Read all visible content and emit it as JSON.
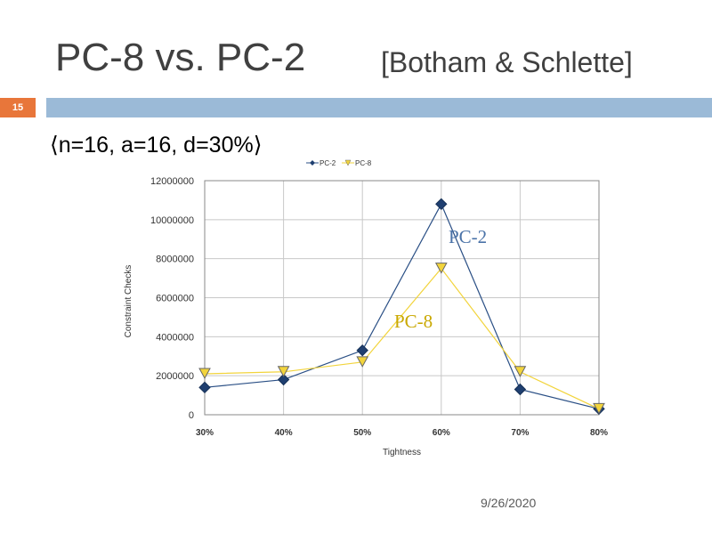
{
  "slide": {
    "title": "PC-8 vs. PC-2",
    "title_right": "[Botham & Schlette]",
    "slide_number": "15",
    "subtitle": "⟨n=16, a=16, d=30%⟩",
    "date": "9/26/2020",
    "accent_color": "#e8763a",
    "bar_color": "#9bbad7"
  },
  "chart_data": {
    "type": "line",
    "x": [
      "30%",
      "40%",
      "50%",
      "60%",
      "70%",
      "80%"
    ],
    "xlabel": "Tightness",
    "ylabel": "Constraint Checks",
    "ylim": [
      0,
      12000000
    ],
    "yticks": [
      "0",
      "2000000",
      "4000000",
      "6000000",
      "8000000",
      "10000000",
      "12000000"
    ],
    "grid": true,
    "legend": "top",
    "series": [
      {
        "name": "PC-2",
        "color": "#2a4f85",
        "marker": "diamond",
        "values": [
          1400000,
          1800000,
          3300000,
          10800000,
          1300000,
          300000
        ]
      },
      {
        "name": "PC-8",
        "color": "#f2d43c",
        "marker": "triangle-down",
        "values": [
          2100000,
          2200000,
          2700000,
          7500000,
          2200000,
          300000
        ]
      }
    ],
    "annotations": [
      {
        "text": "PC-2",
        "color": "#4b73a8"
      },
      {
        "text": "PC-8",
        "color": "#c9a800"
      }
    ]
  }
}
